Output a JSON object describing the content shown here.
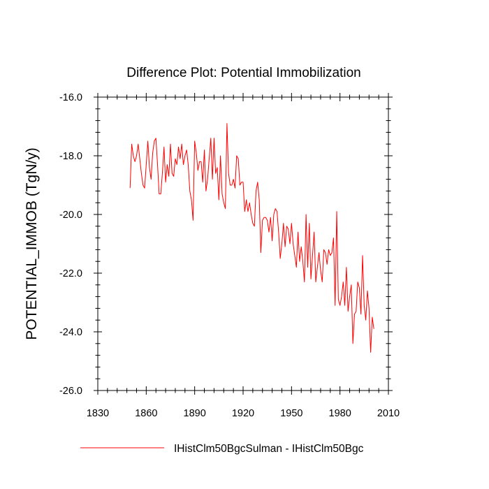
{
  "chart_data": {
    "type": "line",
    "title": "Difference Plot: Potential Immobilization",
    "xlabel": "",
    "ylabel": "POTENTIAL_IMMOB  (TgN/y)",
    "xlim": [
      1830,
      2010
    ],
    "ylim": [
      -26.0,
      -16.0
    ],
    "xticks": [
      1830,
      1860,
      1890,
      1920,
      1950,
      1980,
      2010
    ],
    "yticks": [
      -26.0,
      -24.0,
      -22.0,
      -20.0,
      -18.0,
      -16.0
    ],
    "xtick_labels": [
      "1830",
      "1860",
      "1890",
      "1920",
      "1950",
      "1980",
      "2010"
    ],
    "ytick_labels": [
      "-26.0",
      "-24.0",
      "-22.0",
      "-20.0",
      "-18.0",
      "-16.0"
    ],
    "grid": false,
    "legend_position": "bottom",
    "series": [
      {
        "name": "IHistClm50BgcSulman - IHistClm50Bgc",
        "color": "#ff0000",
        "x_start": 1850,
        "x_step": 1,
        "values": [
          -19.1,
          -17.6,
          -18.0,
          -18.2,
          -18.0,
          -17.6,
          -18.1,
          -18.6,
          -19.0,
          -19.1,
          -18.3,
          -17.5,
          -18.4,
          -18.8,
          -17.9,
          -17.5,
          -17.4,
          -18.3,
          -19.3,
          -19.3,
          -18.6,
          -17.7,
          -18.9,
          -18.3,
          -18.7,
          -17.6,
          -18.6,
          -18.7,
          -18.1,
          -18.3,
          -17.7,
          -18.1,
          -17.6,
          -18.3,
          -18.0,
          -17.8,
          -18.3,
          -19.2,
          -19.5,
          -20.2,
          -17.5,
          -17.9,
          -18.5,
          -18.2,
          -18.2,
          -18.9,
          -17.8,
          -19.2,
          -18.8,
          -18.1,
          -17.4,
          -18.8,
          -17.4,
          -18.6,
          -18.4,
          -19.5,
          -18.0,
          -19.3,
          -19.6,
          -19.8,
          -16.9,
          -18.6,
          -19.0,
          -19.0,
          -18.8,
          -19.1,
          -18.0,
          -18.1,
          -19.0,
          -18.9,
          -18.9,
          -19.9,
          -19.5,
          -19.9,
          -19.6,
          -20.0,
          -20.3,
          -20.4,
          -19.2,
          -18.9,
          -19.5,
          -21.3,
          -20.2,
          -20.1,
          -20.1,
          -20.2,
          -20.6,
          -20.1,
          -20.9,
          -20.0,
          -19.8,
          -19.9,
          -20.6,
          -21.5,
          -21.0,
          -20.3,
          -21.1,
          -20.4,
          -20.5,
          -21.0,
          -20.3,
          -21.0,
          -21.4,
          -21.8,
          -20.6,
          -21.6,
          -21.1,
          -21.6,
          -22.3,
          -20.0,
          -21.8,
          -20.3,
          -22.2,
          -21.4,
          -20.6,
          -22.3,
          -21.8,
          -21.3,
          -21.9,
          -22.3,
          -21.2,
          -21.3,
          -21.7,
          -21.2,
          -21.4,
          -21.3,
          -20.8,
          -23.1,
          -19.9,
          -22.9,
          -23.1,
          -22.8,
          -22.3,
          -23.1,
          -21.8,
          -23.3,
          -22.8,
          -22.4,
          -24.4,
          -23.4,
          -23.3,
          -22.3,
          -22.5,
          -23.4,
          -21.4,
          -23.1,
          -23.6,
          -22.6,
          -23.2,
          -24.7,
          -23.5,
          -23.9
        ]
      }
    ]
  }
}
